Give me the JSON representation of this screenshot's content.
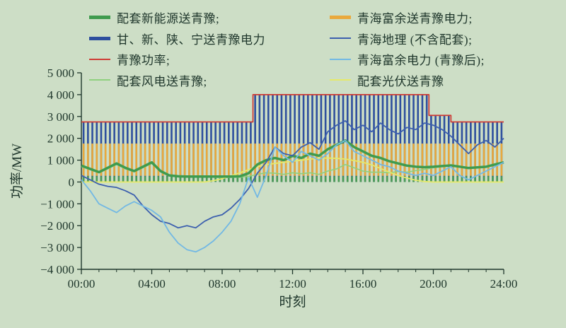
{
  "figure": {
    "bg_color": "#cddec6",
    "text_color": "#1e362b"
  },
  "legend": {
    "items": [
      {
        "label": "配套新能源送青豫;",
        "color": "#3f9b4e",
        "thick": 5
      },
      {
        "label": "甘、新、陕、宁送青豫电力",
        "color": "#2e4f9e",
        "thick": 5
      },
      {
        "label": "青豫功率;",
        "color": "#cf3b34",
        "thick": 2
      },
      {
        "label": "配套风电送青豫;",
        "color": "#8fd07e",
        "thick": 2
      },
      {
        "label": "青海富余送青豫电力;",
        "color": "#e9a93c",
        "thick": 5
      },
      {
        "label": "青海地理 (不含配套);",
        "color": "#3c5fae",
        "thick": 2
      },
      {
        "label": "青海富余电力 (青豫后);",
        "color": "#72b8e4",
        "thick": 2
      },
      {
        "label": "配套光伏送青豫",
        "color": "#e6e96a",
        "thick": 2
      }
    ]
  },
  "chart_data": {
    "type": "line",
    "xlabel": "时刻",
    "ylabel": "功率/MW",
    "xlim": [
      0,
      24
    ],
    "ylim": [
      -4000,
      5000
    ],
    "grid": false,
    "legend_position": "top",
    "xticks": [
      {
        "t": 0,
        "label": "00:00"
      },
      {
        "t": 4,
        "label": "04:00"
      },
      {
        "t": 8,
        "label": "08:00"
      },
      {
        "t": 12,
        "label": "12:00"
      },
      {
        "t": 16,
        "label": "16:00"
      },
      {
        "t": 20,
        "label": "20:00"
      },
      {
        "t": 24,
        "label": "24:00"
      }
    ],
    "yticks": [
      {
        "v": 5000,
        "label": "5 000"
      },
      {
        "v": 4000,
        "label": "4 000"
      },
      {
        "v": 3000,
        "label": "3 000"
      },
      {
        "v": 2000,
        "label": "2 000"
      },
      {
        "v": 1000,
        "label": "1 000"
      },
      {
        "v": 0,
        "label": "0"
      },
      {
        "v": -1000,
        "label": "−1 000"
      },
      {
        "v": -2000,
        "label": "−2 000"
      },
      {
        "v": -3000,
        "label": "−3 000"
      },
      {
        "v": -4000,
        "label": "−4 000"
      }
    ],
    "hatch_total": {
      "name": "甘、新、陕、宁送青豫电力",
      "color": "#2e4f9e",
      "pattern": "vertical-hatch",
      "steps": [
        {
          "t": 0,
          "v": 2750
        },
        {
          "t": 9.75,
          "v": 4000
        },
        {
          "t": 19.75,
          "v": 3050
        },
        {
          "t": 21,
          "v": 2750
        }
      ]
    },
    "bands": [
      {
        "name": "青海富余送青豫电力",
        "color": "#e9a93c",
        "from": 280,
        "to": 1760
      },
      {
        "name": "配套新能源送青豫带",
        "color": "#4d9c55",
        "from": 0,
        "to": 260
      }
    ],
    "series": [
      {
        "name": "配套风电送青豫",
        "color": "#8fd07e",
        "width": 1.6,
        "x_step": 0.5,
        "values": [
          700,
          560,
          420,
          600,
          800,
          600,
          470,
          650,
          850,
          470,
          280,
          250,
          240,
          240,
          230,
          220,
          200,
          210,
          220,
          260,
          350,
          420,
          400,
          350,
          420,
          380,
          420,
          350,
          500,
          600,
          800,
          650,
          500,
          450,
          450,
          420,
          480,
          450,
          520,
          580,
          650,
          700,
          730,
          680,
          620,
          650,
          690,
          790,
          890
        ]
      },
      {
        "name": "配套光伏送青豫",
        "color": "#e6e96a",
        "width": 1.8,
        "x_step": 0.5,
        "values": [
          0,
          0,
          0,
          0,
          0,
          0,
          0,
          0,
          0,
          0,
          0,
          0,
          0,
          0,
          0,
          60,
          150,
          280,
          420,
          560,
          700,
          800,
          850,
          900,
          950,
          1000,
          1050,
          1080,
          1100,
          1080,
          1050,
          980,
          900,
          780,
          620,
          450,
          300,
          180,
          80,
          20,
          0,
          0,
          0,
          0,
          0,
          0,
          0,
          0,
          0
        ]
      },
      {
        "name": "配套新能源送青豫",
        "color": "#3f9b4e",
        "width": 3.5,
        "x_step": 0.5,
        "values": [
          750,
          600,
          450,
          650,
          850,
          650,
          500,
          700,
          900,
          500,
          300,
          260,
          250,
          250,
          250,
          250,
          250,
          250,
          260,
          400,
          800,
          1000,
          1100,
          1000,
          1200,
          1100,
          1300,
          1200,
          1500,
          1700,
          1900,
          1600,
          1400,
          1200,
          1100,
          950,
          850,
          750,
          700,
          680,
          700,
          730,
          760,
          700,
          640,
          670,
          700,
          800,
          900
        ]
      },
      {
        "name": "青海地理 (不含配套)",
        "color": "#3c5fae",
        "width": 1.8,
        "x_step": 0.5,
        "values": [
          300,
          100,
          -100,
          -200,
          -250,
          -400,
          -600,
          -1100,
          -1500,
          -1800,
          -1900,
          -2100,
          -2000,
          -2100,
          -1800,
          -1600,
          -1500,
          -1200,
          -800,
          -300,
          400,
          900,
          1600,
          1300,
          1200,
          1600,
          1800,
          1500,
          2300,
          2600,
          2800,
          2400,
          2600,
          2300,
          2700,
          2400,
          2200,
          2500,
          2400,
          2700,
          2600,
          2400,
          2100,
          1700,
          1300,
          1700,
          1900,
          1600,
          2000
        ]
      },
      {
        "name": "青海富余电力 (青豫后)",
        "color": "#72b8e4",
        "width": 1.8,
        "x_step": 0.5,
        "values": [
          100,
          -400,
          -1000,
          -1200,
          -1400,
          -1100,
          -900,
          -1100,
          -1300,
          -1600,
          -2300,
          -2800,
          -3100,
          -3200,
          -3000,
          -2700,
          -2300,
          -1800,
          -1000,
          200,
          -700,
          300,
          1600,
          1200,
          900,
          1400,
          1200,
          1000,
          1300,
          1700,
          1900,
          1400,
          1200,
          1000,
          800,
          700,
          500,
          400,
          300,
          400,
          300,
          500,
          700,
          300,
          100,
          300,
          500,
          700,
          900
        ]
      },
      {
        "name": "青豫功率",
        "color": "#cf3b34",
        "width": 1.7,
        "type": "step",
        "steps": [
          {
            "t": 0,
            "v": 2750
          },
          {
            "t": 9.75,
            "v": 4000
          },
          {
            "t": 19.75,
            "v": 3050
          },
          {
            "t": 21,
            "v": 2750
          }
        ]
      }
    ]
  }
}
